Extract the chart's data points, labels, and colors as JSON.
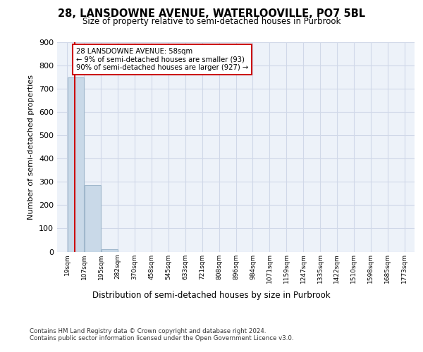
{
  "title1": "28, LANSDOWNE AVENUE, WATERLOOVILLE, PO7 5BL",
  "title2": "Size of property relative to semi-detached houses in Purbrook",
  "xlabel": "Distribution of semi-detached houses by size in Purbrook",
  "ylabel": "Number of semi-detached properties",
  "footer1": "Contains HM Land Registry data © Crown copyright and database right 2024.",
  "footer2": "Contains public sector information licensed under the Open Government Licence v3.0.",
  "annotation_line1": "28 LANSDOWNE AVENUE: 58sqm",
  "annotation_line2": "← 9% of semi-detached houses are smaller (93)",
  "annotation_line3": "90% of semi-detached houses are larger (927) →",
  "property_size": 58,
  "bar_left_edges": [
    19,
    107,
    195,
    282,
    370,
    458,
    545,
    633,
    721,
    808,
    896,
    984,
    1071,
    1159,
    1247,
    1335,
    1422,
    1510,
    1598,
    1685
  ],
  "bar_heights": [
    750,
    285,
    10,
    0,
    0,
    0,
    0,
    0,
    0,
    0,
    0,
    0,
    0,
    0,
    0,
    0,
    0,
    0,
    0,
    0
  ],
  "bin_width": 88,
  "bar_color": "#c9d9e8",
  "bar_edge_color": "#a0b8cc",
  "red_line_color": "#cc0000",
  "annotation_box_color": "#cc0000",
  "grid_color": "#d0d8e8",
  "background_color": "#edf2f9",
  "ylim": [
    0,
    900
  ],
  "yticks": [
    0,
    100,
    200,
    300,
    400,
    500,
    600,
    700,
    800,
    900
  ],
  "x_tick_labels": [
    "19sqm",
    "107sqm",
    "195sqm",
    "282sqm",
    "370sqm",
    "458sqm",
    "545sqm",
    "633sqm",
    "721sqm",
    "808sqm",
    "896sqm",
    "984sqm",
    "1071sqm",
    "1159sqm",
    "1247sqm",
    "1335sqm",
    "1422sqm",
    "1510sqm",
    "1598sqm",
    "1685sqm",
    "1773sqm"
  ]
}
